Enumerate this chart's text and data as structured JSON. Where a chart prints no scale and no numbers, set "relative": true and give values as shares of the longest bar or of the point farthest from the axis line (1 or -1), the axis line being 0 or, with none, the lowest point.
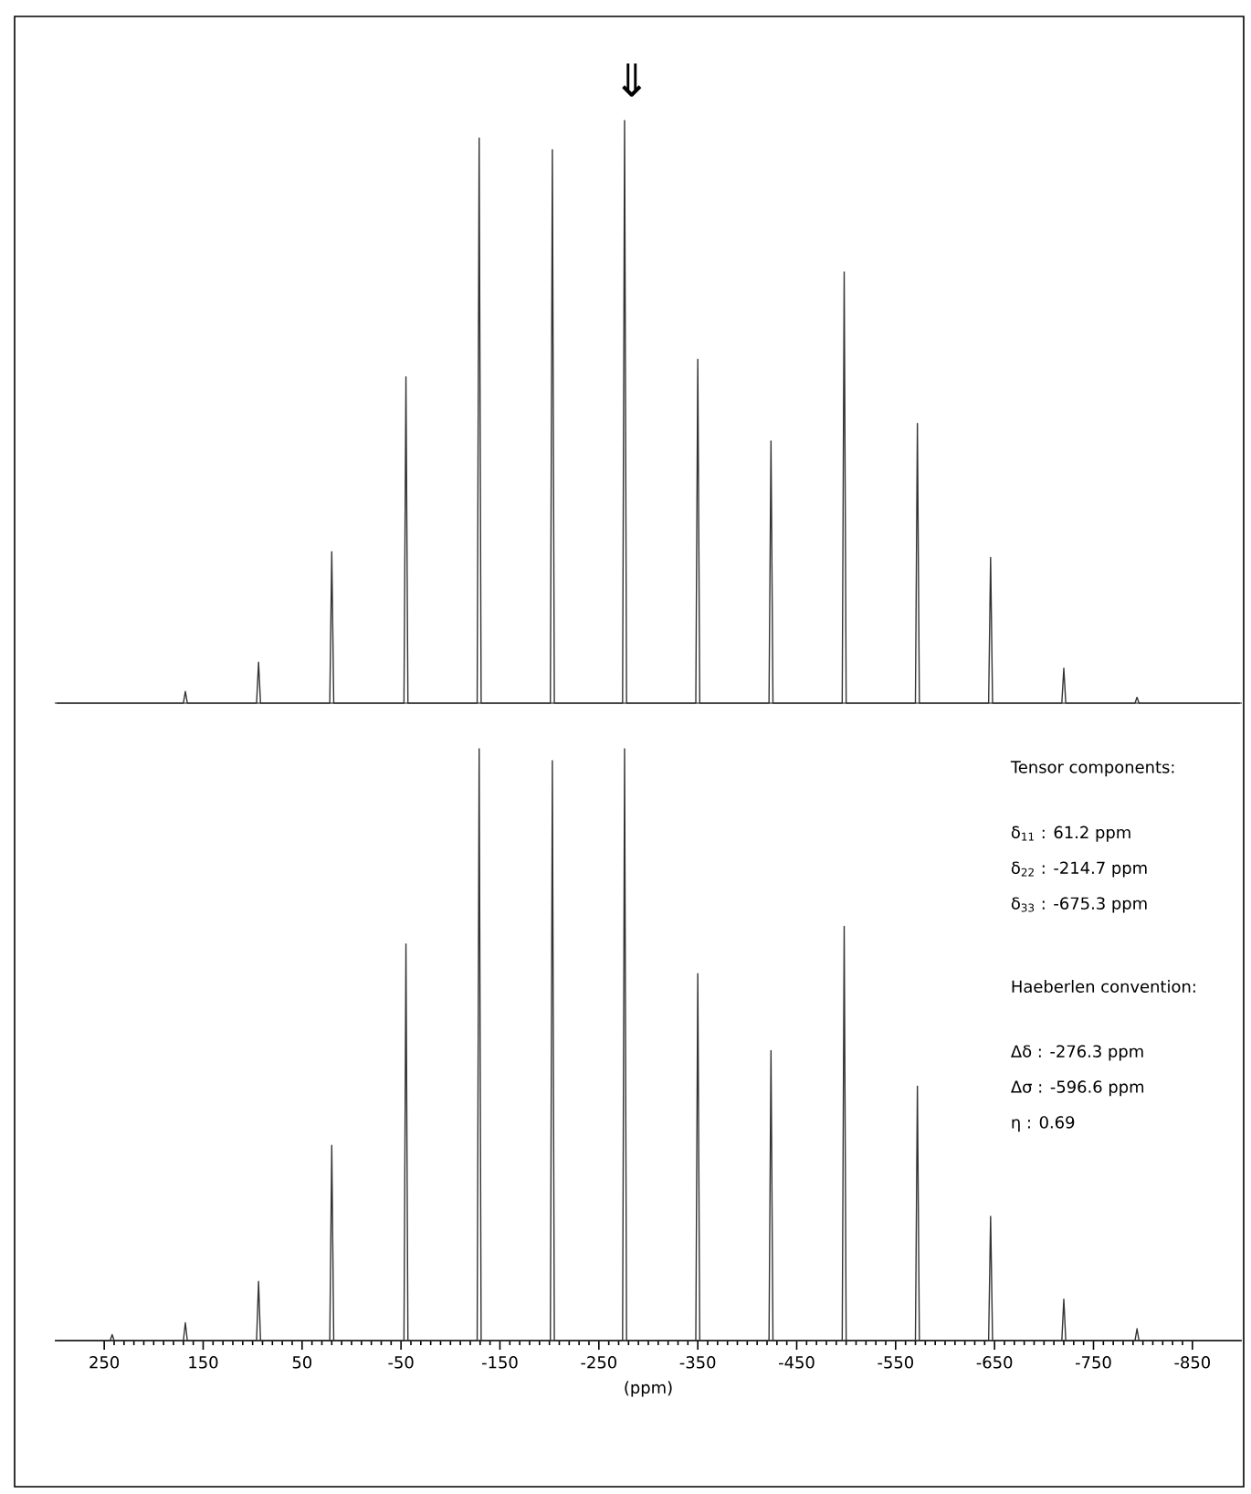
{
  "chart_data": [
    {
      "type": "line",
      "relative": true,
      "xlim": [
        300,
        -900
      ],
      "tick_labels": false,
      "annotations": [
        "⇓"
      ],
      "series": [
        {
          "color": "#333333",
          "x": [
            298,
            170,
            168,
            166,
            96,
            94,
            92,
            22,
            20,
            18,
            -53,
            -55,
            -57,
            -127,
            -129,
            -131,
            -201,
            -203,
            -205,
            -274,
            -276,
            -278,
            -348,
            -350,
            -352,
            -422,
            -424,
            -426,
            -496,
            -498,
            -500,
            -570,
            -572,
            -574,
            -644,
            -646,
            -648,
            -718,
            -720,
            -722,
            -792,
            -794,
            -796,
            -898
          ],
          "values": [
            0,
            0,
            0.02,
            0,
            0,
            0.07,
            0,
            0,
            0.26,
            0,
            0,
            0.56,
            0,
            0,
            0.97,
            0,
            0,
            0.95,
            0,
            0,
            1.0,
            0,
            0,
            0.59,
            0,
            0,
            0.45,
            0,
            0,
            0.74,
            0,
            0,
            0.48,
            0,
            0,
            0.25,
            0,
            0,
            0.06,
            0,
            0,
            0.01,
            0,
            0
          ]
        }
      ]
    },
    {
      "type": "line",
      "relative": true,
      "xlim": [
        300,
        -900
      ],
      "tick_labels": "x",
      "xlabel": "(ppm)",
      "xticks": [
        250,
        150,
        50,
        -50,
        -150,
        -250,
        -350,
        -450,
        -550,
        -650,
        -750,
        -850
      ],
      "annotations": [
        "Tensor components:",
        "δ$_{11}$ : 61.2 ppm",
        "δ$_{22}$ : -214.7 ppm",
        "δ$_{33}$ : -675.3 ppm",
        "Haeberlen convention:",
        "Δδ : -276.3 ppm",
        "Δσ : -596.6 ppm",
        "η : 0.69"
      ],
      "series": [
        {
          "color": "#333333",
          "x": [
            298,
            244,
            242,
            240,
            170,
            168,
            166,
            96,
            94,
            92,
            22,
            20,
            18,
            -53,
            -55,
            -57,
            -127,
            -129,
            -131,
            -201,
            -203,
            -205,
            -274,
            -276,
            -278,
            -348,
            -350,
            -352,
            -422,
            -424,
            -426,
            -496,
            -498,
            -500,
            -570,
            -572,
            -574,
            -644,
            -646,
            -648,
            -718,
            -720,
            -722,
            -792,
            -794,
            -796,
            -898
          ],
          "values": [
            0,
            0,
            0.01,
            0,
            0,
            0.03,
            0,
            0,
            0.1,
            0,
            0,
            0.33,
            0,
            0,
            0.67,
            0,
            0,
            1.0,
            0,
            0,
            0.98,
            0,
            0,
            1.0,
            0,
            0,
            0.62,
            0,
            0,
            0.49,
            0,
            0,
            0.7,
            0,
            0,
            0.43,
            0,
            0,
            0.21,
            0,
            0,
            0.07,
            0,
            0,
            0.02,
            0,
            0
          ]
        }
      ]
    }
  ]
}
